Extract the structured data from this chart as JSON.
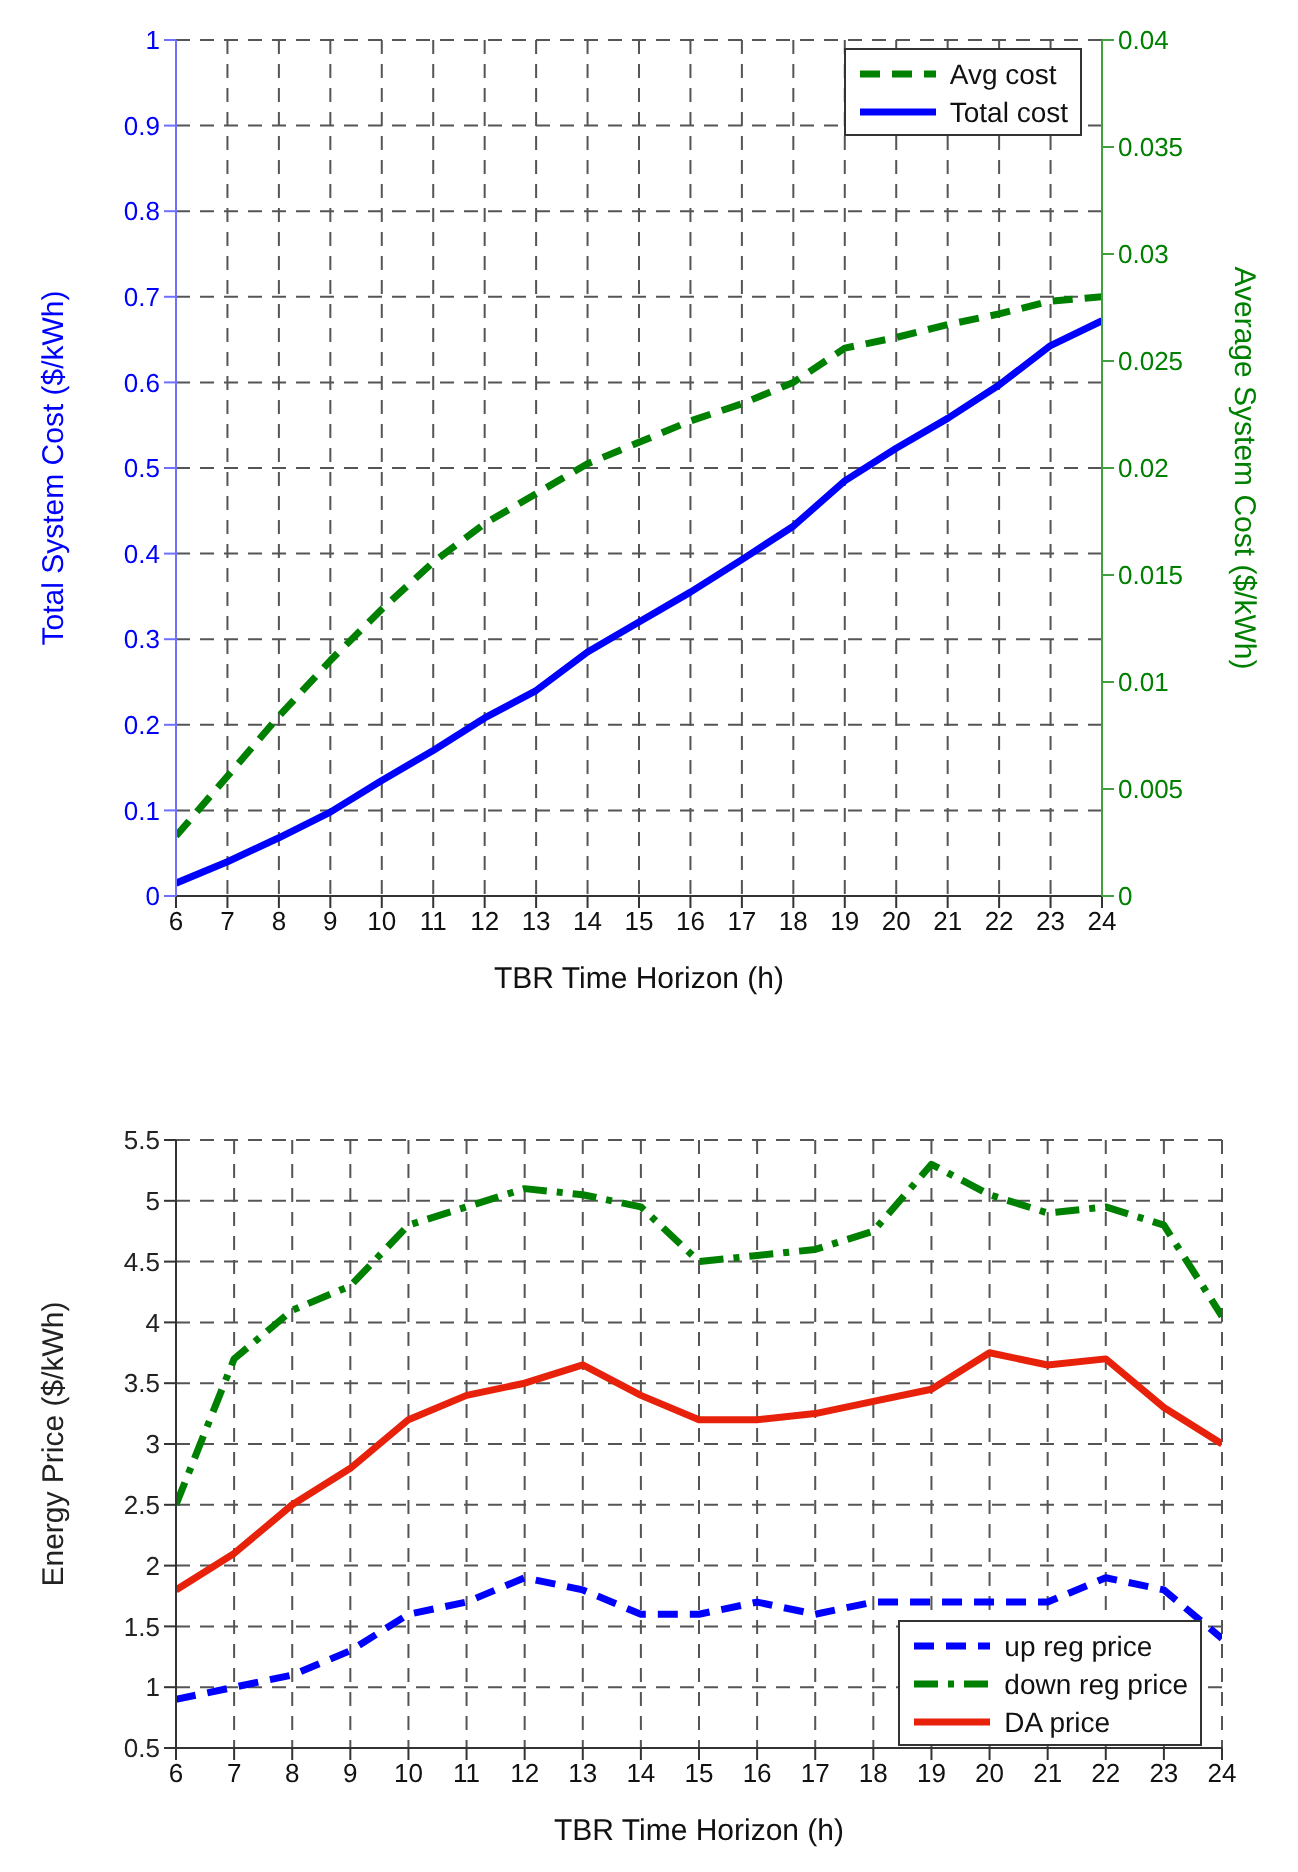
{
  "chart_data": [
    {
      "type": "line",
      "xlabel": "TBR Time Horizon (h)",
      "ylabel": "Total System Cost ($/kWh)",
      "y2label": "Average System Cost ($/kWh)",
      "x": [
        6,
        7,
        8,
        9,
        10,
        11,
        12,
        13,
        14,
        15,
        16,
        17,
        18,
        19,
        20,
        21,
        22,
        23,
        24
      ],
      "series": [
        {
          "name": "Avg cost",
          "color": "#008000",
          "axis": "y2",
          "line_style": "dashed",
          "values": [
            0.0028,
            0.0056,
            0.0084,
            0.011,
            0.0134,
            0.0156,
            0.0174,
            0.0188,
            0.0202,
            0.0212,
            0.0222,
            0.023,
            0.024,
            0.0256,
            0.0261,
            0.0267,
            0.0272,
            0.0278,
            0.028
          ]
        },
        {
          "name": "Total cost",
          "color": "#0000ff",
          "line_style": "solid",
          "values": [
            0.015,
            0.04,
            0.068,
            0.098,
            0.135,
            0.17,
            0.208,
            0.24,
            0.285,
            0.32,
            0.355,
            0.393,
            0.432,
            0.485,
            0.523,
            0.558,
            0.597,
            0.643,
            0.672
          ]
        }
      ],
      "xlim": [
        6,
        24
      ],
      "xticks": [
        6,
        7,
        8,
        9,
        10,
        11,
        12,
        13,
        14,
        15,
        16,
        17,
        18,
        19,
        20,
        21,
        22,
        23,
        24
      ],
      "ylim": [
        0,
        1
      ],
      "yticks": [
        0,
        0.1,
        0.2,
        0.3,
        0.4,
        0.5,
        0.6,
        0.7,
        0.8,
        0.9,
        1
      ],
      "y2lim": [
        0,
        0.04
      ],
      "y2ticks": [
        0,
        0.005,
        0.01,
        0.015,
        0.02,
        0.025,
        0.03,
        0.035,
        0.04
      ],
      "grid": true,
      "legend": "top right",
      "marker": "none"
    },
    {
      "type": "line",
      "xlabel": "TBR Time Horizon (h)",
      "ylabel": "Energy Price ($/kWh)",
      "x": [
        6,
        7,
        8,
        9,
        10,
        11,
        12,
        13,
        14,
        15,
        16,
        17,
        18,
        19,
        20,
        21,
        22,
        23,
        24
      ],
      "series": [
        {
          "name": "up reg price",
          "color": "#0000ff",
          "line_style": "dashed",
          "values": [
            0.9,
            1.0,
            1.1,
            1.3,
            1.6,
            1.7,
            1.9,
            1.8,
            1.6,
            1.6,
            1.7,
            1.6,
            1.7,
            1.7,
            1.7,
            1.7,
            1.9,
            1.8,
            1.4
          ]
        },
        {
          "name": "down reg price",
          "color": "#008000",
          "line_style": "dashdot",
          "values": [
            2.5,
            3.7,
            4.1,
            4.3,
            4.8,
            4.95,
            5.1,
            5.05,
            4.95,
            4.5,
            4.55,
            4.6,
            4.75,
            5.3,
            5.05,
            4.9,
            4.95,
            4.8,
            4.05
          ]
        },
        {
          "name": "DA price",
          "color": "#e8210b",
          "line_style": "solid",
          "values": [
            1.8,
            2.1,
            2.5,
            2.8,
            3.2,
            3.4,
            3.5,
            3.65,
            3.4,
            3.2,
            3.2,
            3.25,
            3.35,
            3.45,
            3.75,
            3.65,
            3.7,
            3.3,
            3.0
          ]
        }
      ],
      "xlim": [
        6,
        24
      ],
      "xticks": [
        6,
        7,
        8,
        9,
        10,
        11,
        12,
        13,
        14,
        15,
        16,
        17,
        18,
        19,
        20,
        21,
        22,
        23,
        24
      ],
      "ylim": [
        0.5,
        5.5
      ],
      "yticks": [
        0.5,
        1,
        1.5,
        2,
        2.5,
        3,
        3.5,
        4,
        4.5,
        5,
        5.5
      ],
      "grid": true,
      "legend": "bottom right",
      "marker": "none"
    }
  ]
}
